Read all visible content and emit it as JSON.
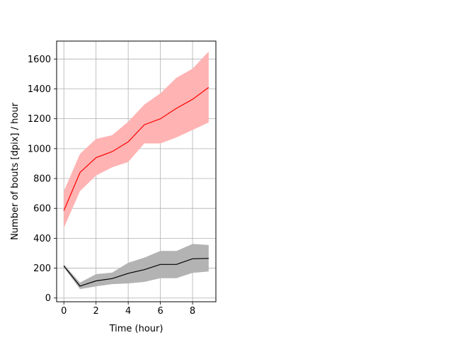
{
  "chart_data": {
    "type": "line",
    "xlabel": "Time (hour)",
    "ylabel": "Number of bouts [dpix]  / hour",
    "xlim": [
      -0.45,
      9.45
    ],
    "ylim": [
      -25,
      1720
    ],
    "xticks": [
      0,
      2,
      4,
      6,
      8
    ],
    "yticks": [
      0,
      200,
      400,
      600,
      800,
      1000,
      1200,
      1400,
      1600
    ],
    "grid": true,
    "x": [
      0,
      1,
      2,
      3,
      4,
      5,
      6,
      7,
      8,
      9
    ],
    "series": [
      {
        "color": "#ff0000",
        "band_color": "#ffb3b3",
        "values": [
          585,
          840,
          940,
          980,
          1045,
          1160,
          1200,
          1270,
          1330,
          1410
        ],
        "lower": [
          470,
          715,
          820,
          875,
          910,
          1035,
          1035,
          1075,
          1125,
          1175
        ],
        "upper": [
          715,
          965,
          1065,
          1090,
          1180,
          1295,
          1370,
          1475,
          1535,
          1650
        ]
      },
      {
        "color": "#000000",
        "band_color": "#b3b3b3",
        "values": [
          215,
          80,
          115,
          130,
          165,
          190,
          225,
          225,
          263,
          265
        ],
        "lower": [
          205,
          60,
          78,
          93,
          98,
          108,
          133,
          133,
          168,
          178
        ],
        "upper": [
          225,
          103,
          160,
          170,
          236,
          270,
          315,
          315,
          362,
          355
        ]
      }
    ]
  }
}
